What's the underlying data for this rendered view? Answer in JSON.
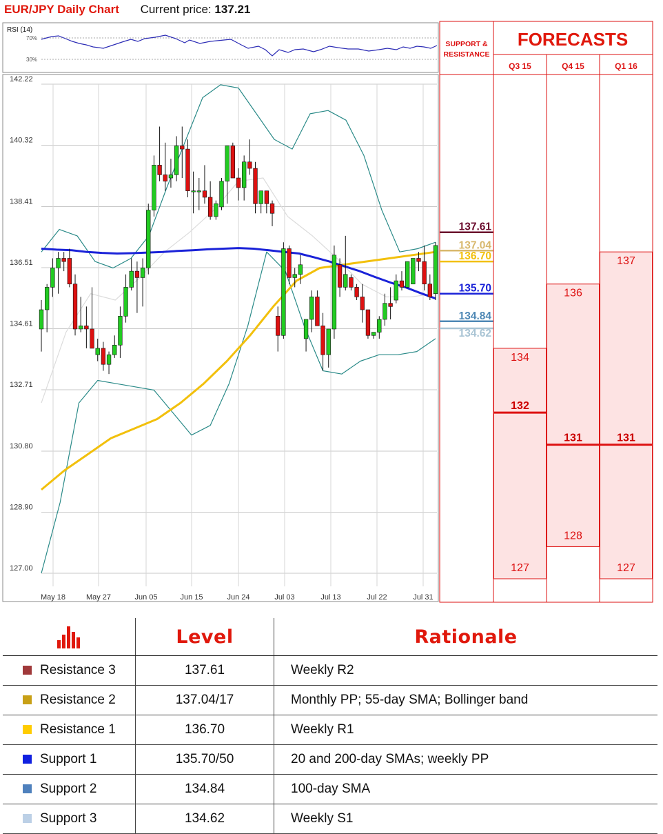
{
  "header": {
    "title": "EUR/JPY Daily Chart",
    "price_label": "Current price:",
    "price_value": "137.21"
  },
  "colors": {
    "red": "#e0180c",
    "up": "#22cc22",
    "down": "#dd1111",
    "sma20_200": "#1a22d8",
    "sma55": "#f2c00c",
    "bollinger": "#2a8a88",
    "sma100": "#e6e6e6"
  },
  "rsi": {
    "label": "RSI (14)",
    "levels": [
      "70%",
      "30%"
    ]
  },
  "chart_data": {
    "type": "candlestick",
    "title": "EUR/JPY Daily Chart",
    "y_ticks": [
      "142.22",
      "140.32",
      "138.41",
      "136.51",
      "134.61",
      "132.71",
      "130.80",
      "128.90",
      "127.00"
    ],
    "ylim": [
      127.0,
      142.22
    ],
    "x_ticks": [
      "May 18",
      "May 27",
      "Jun 05",
      "Jun 15",
      "Jun 24",
      "Jul 03",
      "Jul 13",
      "Jul 22",
      "Jul 31"
    ],
    "grid": true,
    "candles": [
      {
        "o": 134.6,
        "h": 135.5,
        "l": 133.9,
        "c": 135.2
      },
      {
        "o": 135.2,
        "h": 136.0,
        "l": 134.5,
        "c": 135.9
      },
      {
        "o": 135.9,
        "h": 136.8,
        "l": 135.6,
        "c": 136.5
      },
      {
        "o": 136.5,
        "h": 137.0,
        "l": 135.7,
        "c": 136.8
      },
      {
        "o": 136.8,
        "h": 137.0,
        "l": 136.4,
        "c": 136.7
      },
      {
        "o": 136.8,
        "h": 137.1,
        "l": 135.9,
        "c": 136.0
      },
      {
        "o": 136.0,
        "h": 136.3,
        "l": 134.4,
        "c": 134.6
      },
      {
        "o": 134.6,
        "h": 135.6,
        "l": 134.5,
        "c": 134.7
      },
      {
        "o": 134.7,
        "h": 135.3,
        "l": 134.0,
        "c": 134.6
      },
      {
        "o": 134.6,
        "h": 135.9,
        "l": 134.0,
        "c": 134.0
      },
      {
        "o": 133.8,
        "h": 134.3,
        "l": 133.6,
        "c": 134.0
      },
      {
        "o": 134.0,
        "h": 134.2,
        "l": 133.3,
        "c": 133.5
      },
      {
        "o": 133.5,
        "h": 133.9,
        "l": 133.2,
        "c": 133.8
      },
      {
        "o": 133.8,
        "h": 134.4,
        "l": 133.7,
        "c": 134.1
      },
      {
        "o": 134.1,
        "h": 135.3,
        "l": 133.7,
        "c": 135.0
      },
      {
        "o": 135.0,
        "h": 136.3,
        "l": 134.8,
        "c": 135.9
      },
      {
        "o": 135.9,
        "h": 136.8,
        "l": 135.8,
        "c": 136.4
      },
      {
        "o": 136.4,
        "h": 136.7,
        "l": 135.1,
        "c": 136.2
      },
      {
        "o": 136.2,
        "h": 136.8,
        "l": 135.3,
        "c": 136.5
      },
      {
        "o": 136.5,
        "h": 138.5,
        "l": 136.3,
        "c": 138.3
      },
      {
        "o": 138.3,
        "h": 140.0,
        "l": 138.1,
        "c": 139.7
      },
      {
        "o": 139.7,
        "h": 140.9,
        "l": 139.2,
        "c": 139.4
      },
      {
        "o": 139.4,
        "h": 140.4,
        "l": 138.9,
        "c": 139.2
      },
      {
        "o": 139.3,
        "h": 139.9,
        "l": 139.0,
        "c": 139.4
      },
      {
        "o": 139.4,
        "h": 140.6,
        "l": 139.2,
        "c": 140.3
      },
      {
        "o": 140.3,
        "h": 140.9,
        "l": 139.3,
        "c": 140.2
      },
      {
        "o": 140.2,
        "h": 140.5,
        "l": 138.7,
        "c": 138.9
      },
      {
        "o": 138.9,
        "h": 139.5,
        "l": 138.2,
        "c": 138.9
      },
      {
        "o": 138.9,
        "h": 139.3,
        "l": 138.3,
        "c": 138.9
      },
      {
        "o": 138.9,
        "h": 139.7,
        "l": 138.5,
        "c": 138.7
      },
      {
        "o": 138.7,
        "h": 139.2,
        "l": 138.0,
        "c": 138.1
      },
      {
        "o": 138.1,
        "h": 138.6,
        "l": 138.0,
        "c": 138.5
      },
      {
        "o": 138.4,
        "h": 139.3,
        "l": 138.3,
        "c": 139.2
      },
      {
        "o": 139.2,
        "h": 140.3,
        "l": 138.5,
        "c": 140.3
      },
      {
        "o": 140.3,
        "h": 140.4,
        "l": 139.4,
        "c": 139.3
      },
      {
        "o": 139.3,
        "h": 139.6,
        "l": 138.6,
        "c": 139.0
      },
      {
        "o": 139.0,
        "h": 140.0,
        "l": 138.6,
        "c": 139.8
      },
      {
        "o": 139.8,
        "h": 140.5,
        "l": 139.4,
        "c": 139.6
      },
      {
        "o": 139.6,
        "h": 139.8,
        "l": 138.2,
        "c": 138.5
      },
      {
        "o": 138.5,
        "h": 138.9,
        "l": 138.2,
        "c": 138.9
      },
      {
        "o": 138.9,
        "h": 138.9,
        "l": 138.2,
        "c": 138.5
      },
      {
        "o": 138.5,
        "h": 138.6,
        "l": 137.8,
        "c": 138.2
      },
      {
        "o": 135.0,
        "h": 135.3,
        "l": 133.9,
        "c": 134.4
      },
      {
        "o": 134.4,
        "h": 137.3,
        "l": 134.3,
        "c": 137.1
      },
      {
        "o": 137.1,
        "h": 137.2,
        "l": 136.0,
        "c": 136.2
      },
      {
        "o": 136.2,
        "h": 136.5,
        "l": 135.9,
        "c": 136.3
      },
      {
        "o": 136.3,
        "h": 136.9,
        "l": 136.0,
        "c": 136.6
      },
      {
        "o": 134.3,
        "h": 134.9,
        "l": 133.9,
        "c": 134.9
      },
      {
        "o": 134.9,
        "h": 135.8,
        "l": 134.5,
        "c": 135.6
      },
      {
        "o": 135.6,
        "h": 135.8,
        "l": 134.7,
        "c": 134.7
      },
      {
        "o": 134.7,
        "h": 135.1,
        "l": 133.3,
        "c": 133.8
      },
      {
        "o": 133.8,
        "h": 134.6,
        "l": 133.4,
        "c": 134.6
      },
      {
        "o": 134.6,
        "h": 137.2,
        "l": 134.3,
        "c": 136.9
      },
      {
        "o": 136.6,
        "h": 136.8,
        "l": 135.6,
        "c": 135.9
      },
      {
        "o": 135.9,
        "h": 137.5,
        "l": 135.8,
        "c": 136.3
      },
      {
        "o": 136.2,
        "h": 136.3,
        "l": 135.8,
        "c": 135.9
      },
      {
        "o": 135.9,
        "h": 136.0,
        "l": 135.5,
        "c": 135.6
      },
      {
        "o": 135.6,
        "h": 136.0,
        "l": 134.8,
        "c": 135.2
      },
      {
        "o": 135.2,
        "h": 135.2,
        "l": 134.3,
        "c": 134.4
      },
      {
        "o": 134.4,
        "h": 134.5,
        "l": 134.3,
        "c": 134.5
      },
      {
        "o": 134.5,
        "h": 135.0,
        "l": 134.3,
        "c": 134.9
      },
      {
        "o": 134.9,
        "h": 135.7,
        "l": 134.7,
        "c": 135.4
      },
      {
        "o": 135.4,
        "h": 135.9,
        "l": 134.9,
        "c": 135.3
      },
      {
        "o": 135.5,
        "h": 136.3,
        "l": 135.4,
        "c": 136.1
      },
      {
        "o": 136.1,
        "h": 136.4,
        "l": 135.8,
        "c": 135.9
      },
      {
        "o": 135.9,
        "h": 136.7,
        "l": 135.9,
        "c": 136.7
      },
      {
        "o": 136.0,
        "h": 136.7,
        "l": 136.0,
        "c": 136.8
      },
      {
        "o": 136.8,
        "h": 137.0,
        "l": 136.4,
        "c": 136.7
      },
      {
        "o": 136.7,
        "h": 137.2,
        "l": 135.8,
        "c": 136.0
      },
      {
        "o": 136.0,
        "h": 136.3,
        "l": 135.5,
        "c": 135.6
      },
      {
        "o": 135.7,
        "h": 137.3,
        "l": 135.5,
        "c": 137.2
      }
    ],
    "sma_20_200": {
      "name": "",
      "values": [
        137.1,
        137.07,
        137.05,
        137.0,
        136.97,
        136.95,
        136.96,
        136.98,
        137.0,
        137.03,
        137.05,
        137.08,
        137.1,
        137.12,
        137.1,
        137.05,
        137.0,
        136.95,
        136.83,
        136.7,
        136.55,
        136.4,
        136.22,
        136.05,
        135.9,
        135.72,
        135.55
      ]
    },
    "sma_55": {
      "name": "",
      "values": [
        129.6,
        130.2,
        130.7,
        131.2,
        131.5,
        131.8,
        132.3,
        132.9,
        133.6,
        134.4,
        135.3,
        136.1,
        136.5,
        136.6,
        136.7,
        136.8,
        136.9,
        137.0
      ]
    },
    "sma_100": {
      "name": "",
      "values": [
        132.3,
        134.5,
        135.7,
        135.5,
        136.2,
        137.0,
        137.6,
        138.3,
        139.2,
        139.3,
        138.1,
        137.5,
        136.8,
        136.0,
        135.6,
        135.6,
        135.7
      ]
    },
    "bollinger_upper": {
      "name": "",
      "values": [
        137.0,
        137.7,
        137.5,
        136.7,
        136.5,
        136.8,
        137.5,
        139.0,
        140.4,
        141.8,
        142.2,
        142.1,
        141.3,
        140.5,
        140.2,
        141.3,
        141.4,
        141.1,
        140.0,
        138.3,
        137.0,
        137.1,
        137.3
      ]
    },
    "bollinger_lower": {
      "name": "",
      "values": [
        127.0,
        129.2,
        132.3,
        133.0,
        132.9,
        132.8,
        132.7,
        132.0,
        131.3,
        131.6,
        132.9,
        134.7,
        137.0,
        136.4,
        134.7,
        133.3,
        133.2,
        133.6,
        133.8,
        133.8,
        133.9,
        134.3
      ]
    }
  },
  "sr_panel": {
    "header": "SUPPORT & RESISTANCE",
    "levels": [
      {
        "label": "137.61",
        "value": 137.61,
        "color": "#6b0b2d"
      },
      {
        "label": "137.04",
        "value": 137.04,
        "color": "#d8b86c"
      },
      {
        "label": "136.70",
        "value": 136.7,
        "color": "#f2c00c"
      },
      {
        "label": "135.70",
        "value": 135.7,
        "color": "#1a22d8"
      },
      {
        "label": "134.84",
        "value": 134.84,
        "color": "#4f88b5"
      },
      {
        "label": "134.62",
        "value": 134.62,
        "color": "#a9c4d4"
      }
    ]
  },
  "forecasts": {
    "title": "FORECASTS",
    "columns": [
      {
        "label": "Q3 15",
        "top": 134,
        "bottom": 127,
        "main": 132,
        "top_label": "134",
        "main_label": "132",
        "bottom_label": "127"
      },
      {
        "label": "Q4 15",
        "top": 136,
        "bottom": 128,
        "main": 131,
        "top_label": "136",
        "main_label": "131",
        "bottom_label": "128"
      },
      {
        "label": "Q1 16",
        "top": 137,
        "bottom": 127,
        "main": 131,
        "top_label": "137",
        "main_label": "131",
        "bottom_label": "127"
      }
    ]
  },
  "table": {
    "headers": {
      "level": "Level",
      "rationale": "Rationale"
    },
    "rows": [
      {
        "name": "Resistance 3",
        "level": "137.61",
        "rationale": "Weekly R2",
        "color": "#a0393a"
      },
      {
        "name": "Resistance 2",
        "level": "137.04/17",
        "rationale": "Monthly PP; 55-day SMA; Bollinger band",
        "color": "#c8a016"
      },
      {
        "name": "Resistance 1",
        "level": "136.70",
        "rationale": "Weekly R1",
        "color": "#ffcc00"
      },
      {
        "name": "Support 1",
        "level": "135.70/50",
        "rationale": "20 and 200-day SMAs; weekly PP",
        "color": "#1020e0"
      },
      {
        "name": "Support 2",
        "level": "134.84",
        "rationale": "100-day SMA",
        "color": "#4f81bd"
      },
      {
        "name": "Support 3",
        "level": "134.62",
        "rationale": "Weekly S1",
        "color": "#bcd0e6"
      }
    ]
  }
}
